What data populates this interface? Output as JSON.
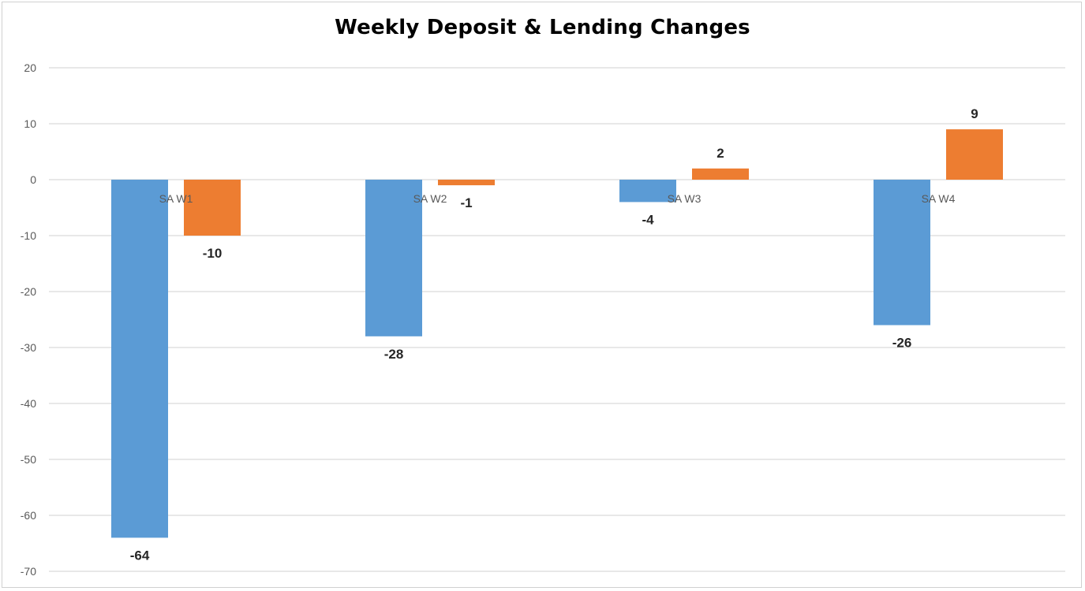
{
  "chart_data": {
    "type": "bar",
    "title": "Weekly Deposit  & Lending  Changes",
    "xlabel": "",
    "ylabel": "",
    "categories": [
      "SA W1",
      "SA W2",
      "SA W3",
      "SA W4"
    ],
    "series": [
      {
        "values": [
          -64,
          -28,
          -4,
          -26
        ],
        "labels": [
          "-64",
          "-28",
          "-4",
          "-26"
        ],
        "color": "#5b9bd5"
      },
      {
        "values": [
          -10,
          -1,
          2,
          9
        ],
        "labels": [
          "-10",
          "-1",
          "2",
          "9"
        ],
        "color": "#ed7d31"
      }
    ],
    "ylim": [
      -70,
      20
    ],
    "yticks": [
      20,
      10,
      0,
      -10,
      -20,
      -30,
      -40,
      -50,
      -60,
      -70
    ],
    "grid": true,
    "legend": "none"
  }
}
